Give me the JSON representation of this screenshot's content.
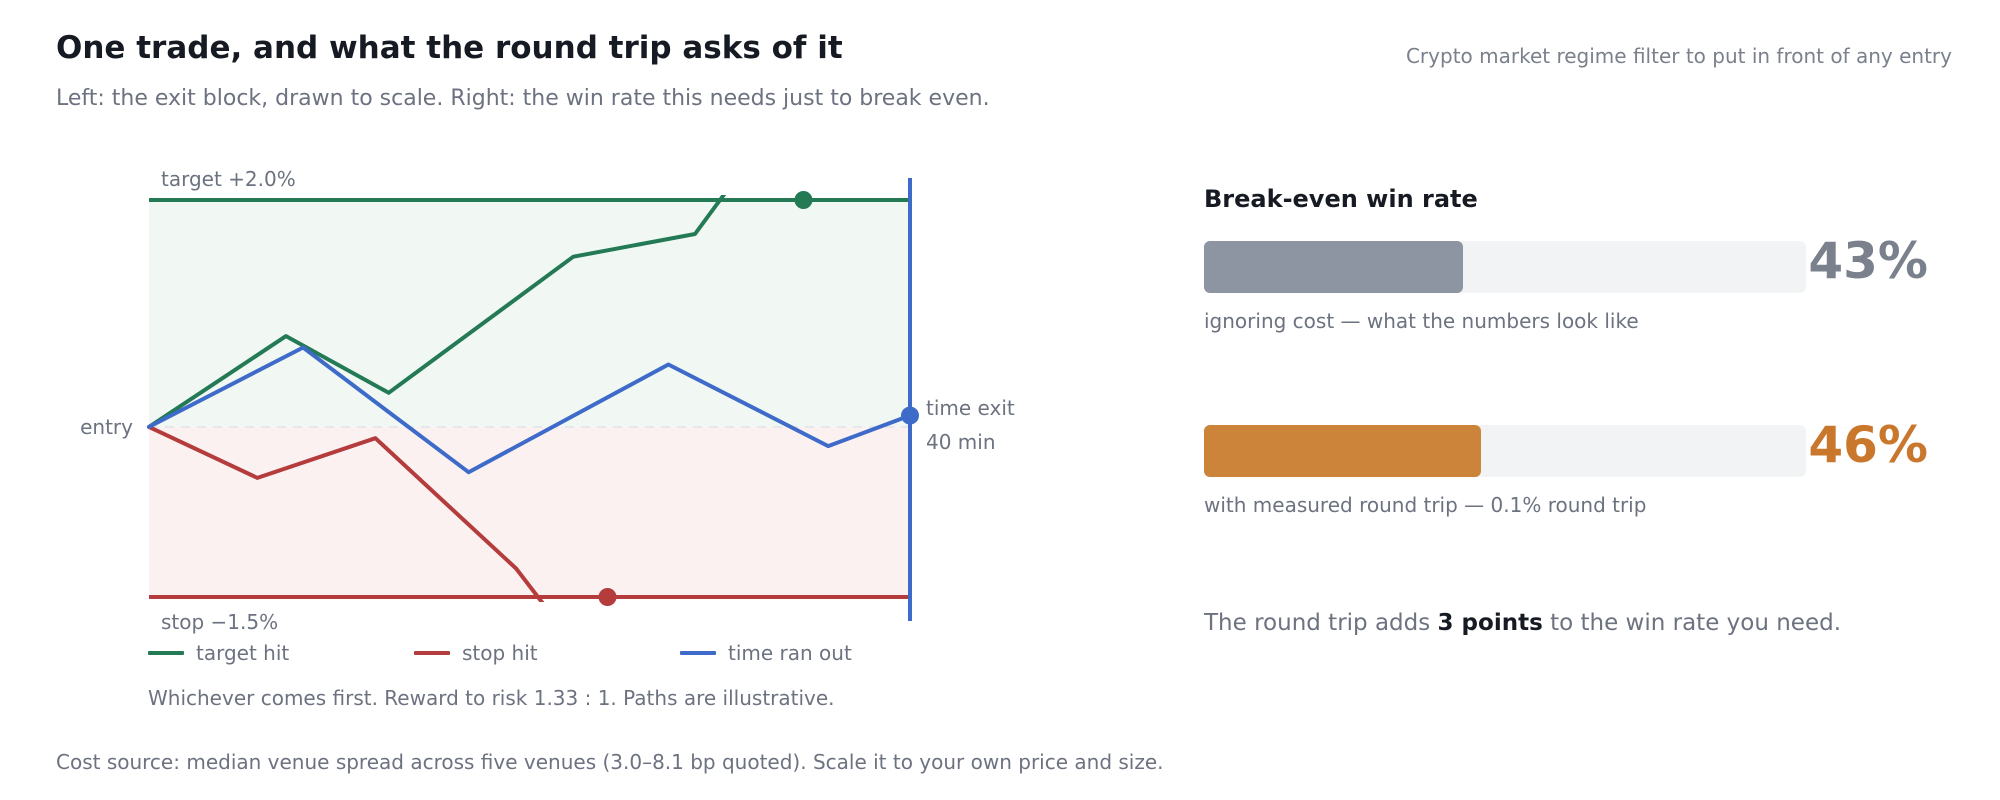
{
  "header": {
    "title": "One trade, and what the round trip asks of it",
    "subtitle": "Left: the exit block, drawn to scale. Right: the win rate this needs just to break even.",
    "tagline": "Crypto market regime filter to put in front of any entry"
  },
  "chart_data": [
    {
      "type": "line",
      "title": "",
      "xlabel": "",
      "ylabel": "",
      "x_unit": "minutes",
      "xlim": [
        0,
        40
      ],
      "ylim": [
        -1.5,
        2.0
      ],
      "y_unit": "% move from entry",
      "levels": {
        "target": {
          "value": 2.0,
          "label": "target +2.0%"
        },
        "stop": {
          "value": -1.5,
          "label": "stop −1.5%"
        },
        "entry": {
          "value": 0,
          "label": "entry"
        },
        "time_exit": {
          "x": 40,
          "label_line1": "time exit",
          "label_line2": "40 min"
        }
      },
      "series": [
        {
          "name": "target hit",
          "color": "#237a55",
          "points": [
            [
              0,
              0
            ],
            [
              7.2,
              0.8
            ],
            [
              12.6,
              0.3
            ],
            [
              22.3,
              1.5
            ],
            [
              28.7,
              1.7
            ],
            [
              34.4,
              3.0
            ]
          ]
        },
        {
          "name": "stop hit",
          "color": "#b43c3c",
          "points": [
            [
              0,
              0
            ],
            [
              5.7,
              -0.45
            ],
            [
              11.9,
              -0.1
            ],
            [
              19.3,
              -1.25
            ],
            [
              24.1,
              -2.3
            ]
          ]
        },
        {
          "name": "time ran out",
          "color": "#3e6bc9",
          "points": [
            [
              0,
              0
            ],
            [
              8.1,
              0.7
            ],
            [
              16.8,
              -0.4
            ],
            [
              27.3,
              0.55
            ],
            [
              35.7,
              -0.17
            ],
            [
              40,
              0.1
            ]
          ]
        }
      ],
      "legend_position": "bottom-left",
      "grid": false,
      "note": "Whichever comes first. Reward to risk 1.33 : 1. Paths are illustrative."
    },
    {
      "type": "bar",
      "title": "Break-even win rate",
      "xlabel": "",
      "ylabel": "",
      "orientation": "horizontal",
      "xlim": [
        0,
        100
      ],
      "categories": [
        "ignoring cost — what the numbers look like",
        "with measured round trip — 0.1% round trip"
      ],
      "values": [
        43,
        46
      ],
      "value_labels": [
        "43%",
        "46%"
      ],
      "colors": [
        "#8c95a1",
        "#cc843b"
      ]
    }
  ],
  "conclusion": {
    "prefix": "The round trip adds ",
    "emphasis": "3 points",
    "suffix": " to the win rate you need."
  },
  "footnote": "Cost source: median venue spread across five venues (3.0–8.1 bp quoted). Scale it to your own price and size."
}
